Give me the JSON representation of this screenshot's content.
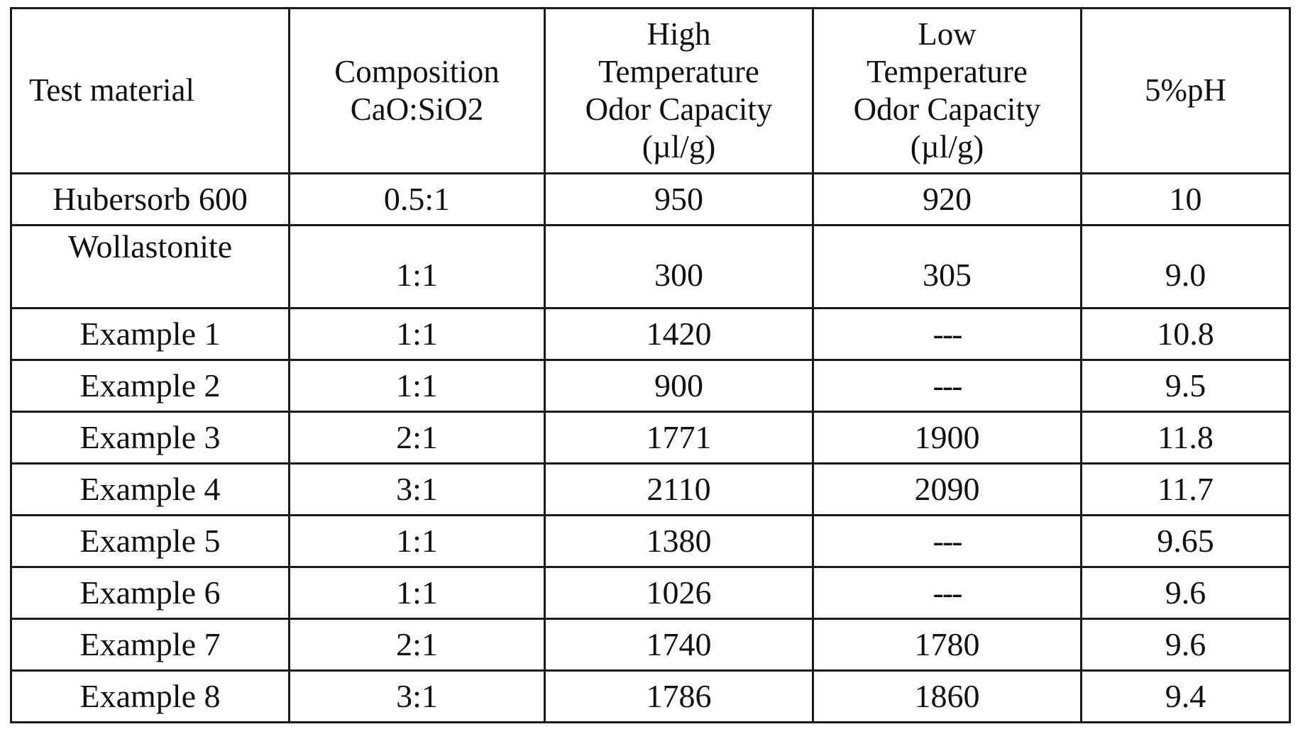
{
  "table": {
    "headers": [
      [
        "Test material"
      ],
      [
        "Composition",
        "CaO:SiO2"
      ],
      [
        "High",
        "Temperature",
        "Odor Capacity",
        "(µl/g)"
      ],
      [
        "Low",
        "Temperature",
        "Odor Capacity",
        "(µl/g)"
      ],
      [
        "5%pH"
      ]
    ],
    "rows": [
      [
        "Hubersorb 600",
        "0.5:1",
        "950",
        "920",
        "10"
      ],
      [
        "Wollastonite",
        "1:1",
        "300",
        "305",
        "9.0"
      ],
      [
        "Example 1",
        "1:1",
        "1420",
        "---",
        "10.8"
      ],
      [
        "Example 2",
        "1:1",
        "900",
        "---",
        "9.5"
      ],
      [
        "Example 3",
        "2:1",
        "1771",
        "1900",
        "11.8"
      ],
      [
        "Example 4",
        "3:1",
        "2110",
        "2090",
        "11.7"
      ],
      [
        "Example 5",
        "1:1",
        "1380",
        "---",
        "9.65"
      ],
      [
        "Example 6",
        "1:1",
        "1026",
        "---",
        "9.6"
      ],
      [
        "Example 7",
        "2:1",
        "1740",
        "1780",
        "9.6"
      ],
      [
        "Example 8",
        "3:1",
        "1786",
        "1860",
        "9.4"
      ]
    ]
  }
}
